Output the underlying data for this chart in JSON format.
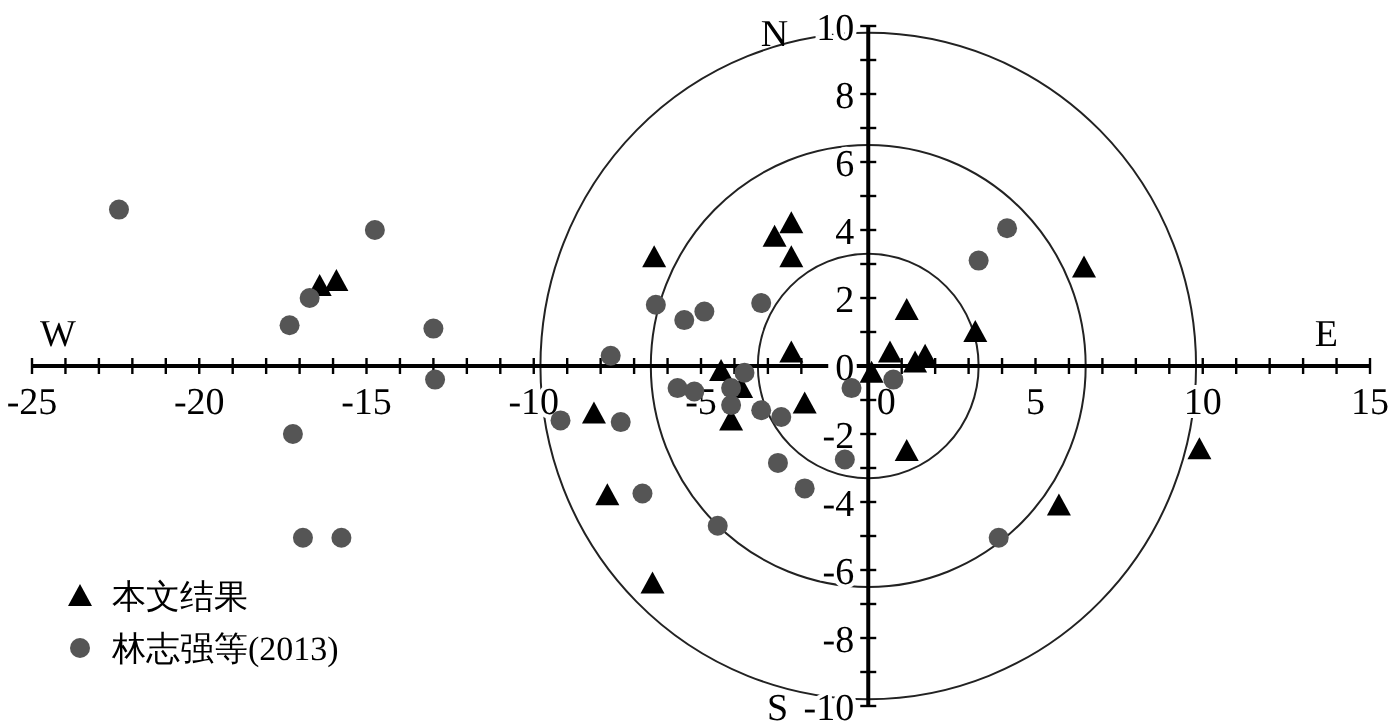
{
  "chart_data": {
    "type": "scatter",
    "annotations": [
      "W",
      "E",
      "N",
      "S"
    ],
    "xlim": [
      -25,
      15
    ],
    "ylim": [
      -10,
      10
    ],
    "xticks": [
      -25,
      {
        "value": -24,
        "label": null
      },
      {
        "value": -23,
        "label": null
      },
      {
        "value": -22,
        "label": null
      },
      {
        "value": -21,
        "label": null
      },
      -20,
      {
        "value": -19,
        "label": null
      },
      {
        "value": -18,
        "label": null
      },
      {
        "value": -17,
        "label": null
      },
      {
        "value": -16,
        "label": null
      },
      -15,
      {
        "value": -14,
        "label": null
      },
      {
        "value": -13,
        "label": null
      },
      {
        "value": -12,
        "label": null
      },
      {
        "value": -11,
        "label": null
      },
      -10,
      {
        "value": -9,
        "label": null
      },
      {
        "value": -8,
        "label": null
      },
      {
        "value": -7,
        "label": null
      },
      {
        "value": -6,
        "label": null
      },
      -5,
      {
        "value": -4,
        "label": null
      },
      {
        "value": -3,
        "label": null
      },
      {
        "value": -2,
        "label": null
      },
      {
        "value": -1,
        "label": null
      },
      0,
      {
        "value": 1,
        "label": null
      },
      {
        "value": 2,
        "label": null
      },
      {
        "value": 3,
        "label": null
      },
      {
        "value": 4,
        "label": null
      },
      5,
      {
        "value": 6,
        "label": null
      },
      {
        "value": 7,
        "label": null
      },
      {
        "value": 8,
        "label": null
      },
      {
        "value": 9,
        "label": null
      },
      10,
      {
        "value": 11,
        "label": null
      },
      {
        "value": 12,
        "label": null
      },
      {
        "value": 13,
        "label": null
      },
      {
        "value": 14,
        "label": null
      },
      15
    ],
    "yticks": [
      -10,
      {
        "value": -9,
        "label": null
      },
      -8,
      {
        "value": -7,
        "label": null
      },
      -6,
      {
        "value": -5,
        "label": null
      },
      -4,
      {
        "value": -3,
        "label": null
      },
      -2,
      {
        "value": -1,
        "label": null
      },
      0,
      {
        "value": 1,
        "label": null
      },
      2,
      {
        "value": 3,
        "label": null
      },
      4,
      {
        "value": 5,
        "label": null
      },
      6,
      {
        "value": 7,
        "label": null
      },
      8,
      {
        "value": 9,
        "label": null
      },
      10
    ],
    "legend": "bottom left",
    "series": [
      {
        "name": "本文结果",
        "color": "#000000",
        "marker": "triangle",
        "x": [
          -16.4,
          -15.9,
          -6.4,
          -2.3,
          -2.8,
          -2.3,
          -2.3,
          -4.4,
          0.65,
          0.1,
          1.15,
          -3.8,
          -8.2,
          -4.1,
          -1.9,
          -7.8,
          -6.45,
          1.4,
          1.7,
          3.2,
          6.45,
          1.15,
          5.7,
          9.9
        ],
        "values": [
          2.35,
          2.5,
          3.2,
          4.2,
          3.8,
          3.2,
          0.4,
          -0.15,
          0.4,
          -0.2,
          1.65,
          -0.65,
          -1.4,
          -1.6,
          -1.1,
          -3.8,
          -6.4,
          0.1,
          0.3,
          1.0,
          2.9,
          -2.5,
          -4.1,
          -2.45
        ]
      },
      {
        "name": "林志强等(2013)",
        "color": "#555555",
        "marker": "circle",
        "x": [
          -22.4,
          -14.75,
          -16.7,
          -17.3,
          -13.0,
          -12.95,
          -17.2,
          -16.9,
          -15.75,
          -6.35,
          -5.5,
          -4.9,
          -3.2,
          -7.7,
          -5.7,
          -5.2,
          -4.1,
          -3.7,
          -4.1,
          -9.2,
          -7.4,
          -3.2,
          -2.6,
          -2.7,
          -0.7,
          -1.9,
          -6.75,
          -4.5,
          -0.5,
          0.75,
          3.3,
          4.15,
          3.9
        ],
        "values": [
          4.6,
          4.0,
          2.0,
          1.2,
          1.1,
          -0.4,
          -2.0,
          -5.05,
          -5.05,
          1.8,
          1.35,
          1.6,
          1.85,
          0.3,
          -0.65,
          -0.75,
          -0.65,
          -0.2,
          -1.15,
          -1.6,
          -1.65,
          -1.3,
          -1.5,
          -2.85,
          -2.75,
          -3.6,
          -3.75,
          -4.7,
          -0.65,
          -0.4,
          3.1,
          4.05,
          -5.05
        ]
      }
    ]
  }
}
